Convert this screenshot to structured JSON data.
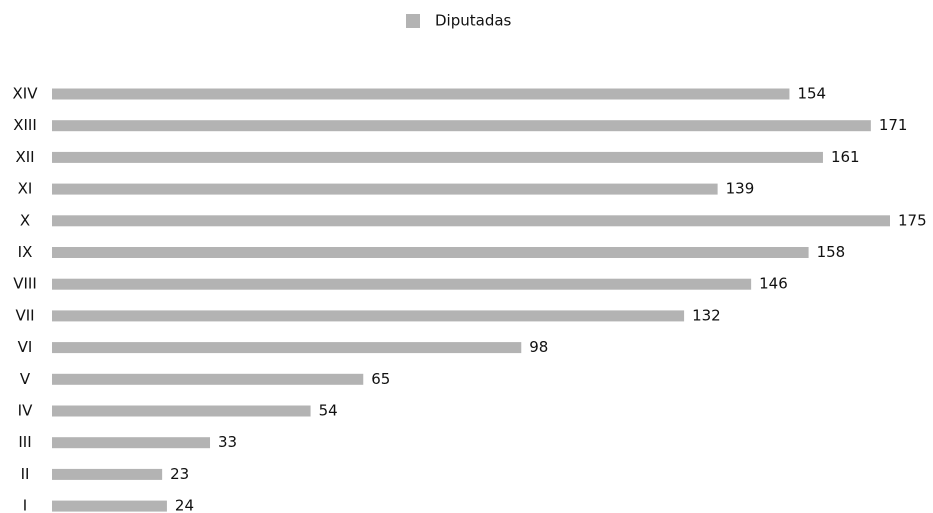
{
  "chart_data": {
    "type": "bar",
    "orientation": "horizontal",
    "categories": [
      "XIV",
      "XIII",
      "XII",
      "XI",
      "X",
      "IX",
      "VIII",
      "VII",
      "VI",
      "V",
      "IV",
      "III",
      "II",
      "I"
    ],
    "series": [
      {
        "name": "Diputadas",
        "color": "#b3b3b3",
        "values": [
          154,
          171,
          161,
          139,
          175,
          158,
          146,
          132,
          98,
          65,
          54,
          33,
          23,
          24
        ]
      }
    ],
    "legend": "top"
  }
}
